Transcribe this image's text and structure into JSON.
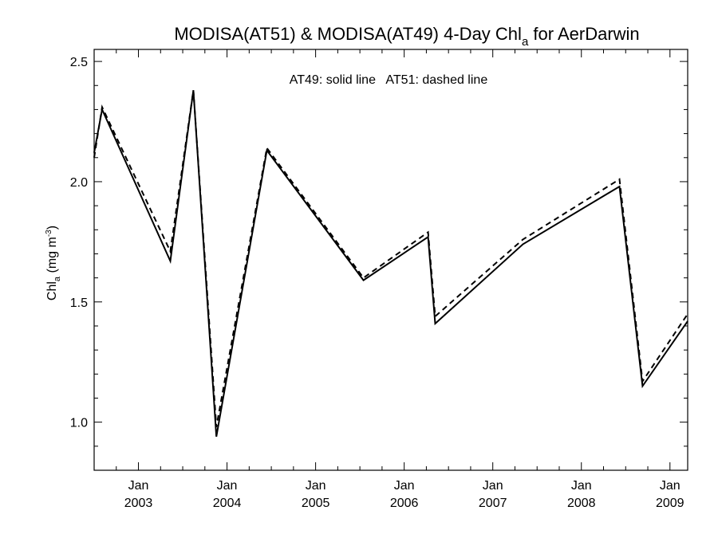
{
  "chart_data": {
    "type": "line",
    "title": {
      "prefix": "MODISA(AT51) & MODISA(AT49) 4-Day Chl",
      "subscript": "a",
      "suffix": " for AerDarwin"
    },
    "annotation": "AT49: solid line   AT51: dashed line",
    "ylabel": {
      "prefix": "Chl",
      "subscript": "a",
      "middle": " (mg m",
      "superscript": "-3",
      "suffix": ")"
    },
    "xlabel": "",
    "xlim": [
      2002.5,
      2009.2
    ],
    "ylim": [
      0.8,
      2.55
    ],
    "xticks": [
      {
        "value": 2003.0,
        "month": "Jan",
        "year": "2003"
      },
      {
        "value": 2004.0,
        "month": "Jan",
        "year": "2004"
      },
      {
        "value": 2005.0,
        "month": "Jan",
        "year": "2005"
      },
      {
        "value": 2006.0,
        "month": "Jan",
        "year": "2006"
      },
      {
        "value": 2007.0,
        "month": "Jan",
        "year": "2007"
      },
      {
        "value": 2008.0,
        "month": "Jan",
        "year": "2008"
      },
      {
        "value": 2009.0,
        "month": "Jan",
        "year": "2009"
      }
    ],
    "yticks": [
      {
        "value": 1.0,
        "label": "1.0"
      },
      {
        "value": 1.5,
        "label": "1.5"
      },
      {
        "value": 2.0,
        "label": "2.0"
      },
      {
        "value": 2.5,
        "label": "2.5"
      }
    ],
    "grid": false,
    "series": [
      {
        "name": "AT49",
        "style": "solid",
        "color": "#000000",
        "points": [
          {
            "x": 2002.5,
            "y": 2.12
          },
          {
            "x": 2002.59,
            "y": 2.3
          },
          {
            "x": 2003.36,
            "y": 1.67
          },
          {
            "x": 2003.62,
            "y": 2.38
          },
          {
            "x": 2003.88,
            "y": 0.94
          },
          {
            "x": 2004.45,
            "y": 2.13
          },
          {
            "x": 2005.54,
            "y": 1.59
          },
          {
            "x": 2006.27,
            "y": 1.77
          },
          {
            "x": 2006.35,
            "y": 1.41
          },
          {
            "x": 2007.34,
            "y": 1.74
          },
          {
            "x": 2008.43,
            "y": 1.98
          },
          {
            "x": 2008.69,
            "y": 1.15
          },
          {
            "x": 2009.2,
            "y": 1.42
          }
        ]
      },
      {
        "name": "AT51",
        "style": "dashed",
        "color": "#000000",
        "points": [
          {
            "x": 2002.5,
            "y": 2.1
          },
          {
            "x": 2002.59,
            "y": 2.31
          },
          {
            "x": 2003.36,
            "y": 1.71
          },
          {
            "x": 2003.62,
            "y": 2.38
          },
          {
            "x": 2003.88,
            "y": 0.98
          },
          {
            "x": 2004.45,
            "y": 2.14
          },
          {
            "x": 2005.54,
            "y": 1.6
          },
          {
            "x": 2006.27,
            "y": 1.79
          },
          {
            "x": 2006.35,
            "y": 1.44
          },
          {
            "x": 2007.34,
            "y": 1.76
          },
          {
            "x": 2008.43,
            "y": 2.01
          },
          {
            "x": 2008.69,
            "y": 1.17
          },
          {
            "x": 2009.2,
            "y": 1.45
          }
        ]
      }
    ]
  }
}
